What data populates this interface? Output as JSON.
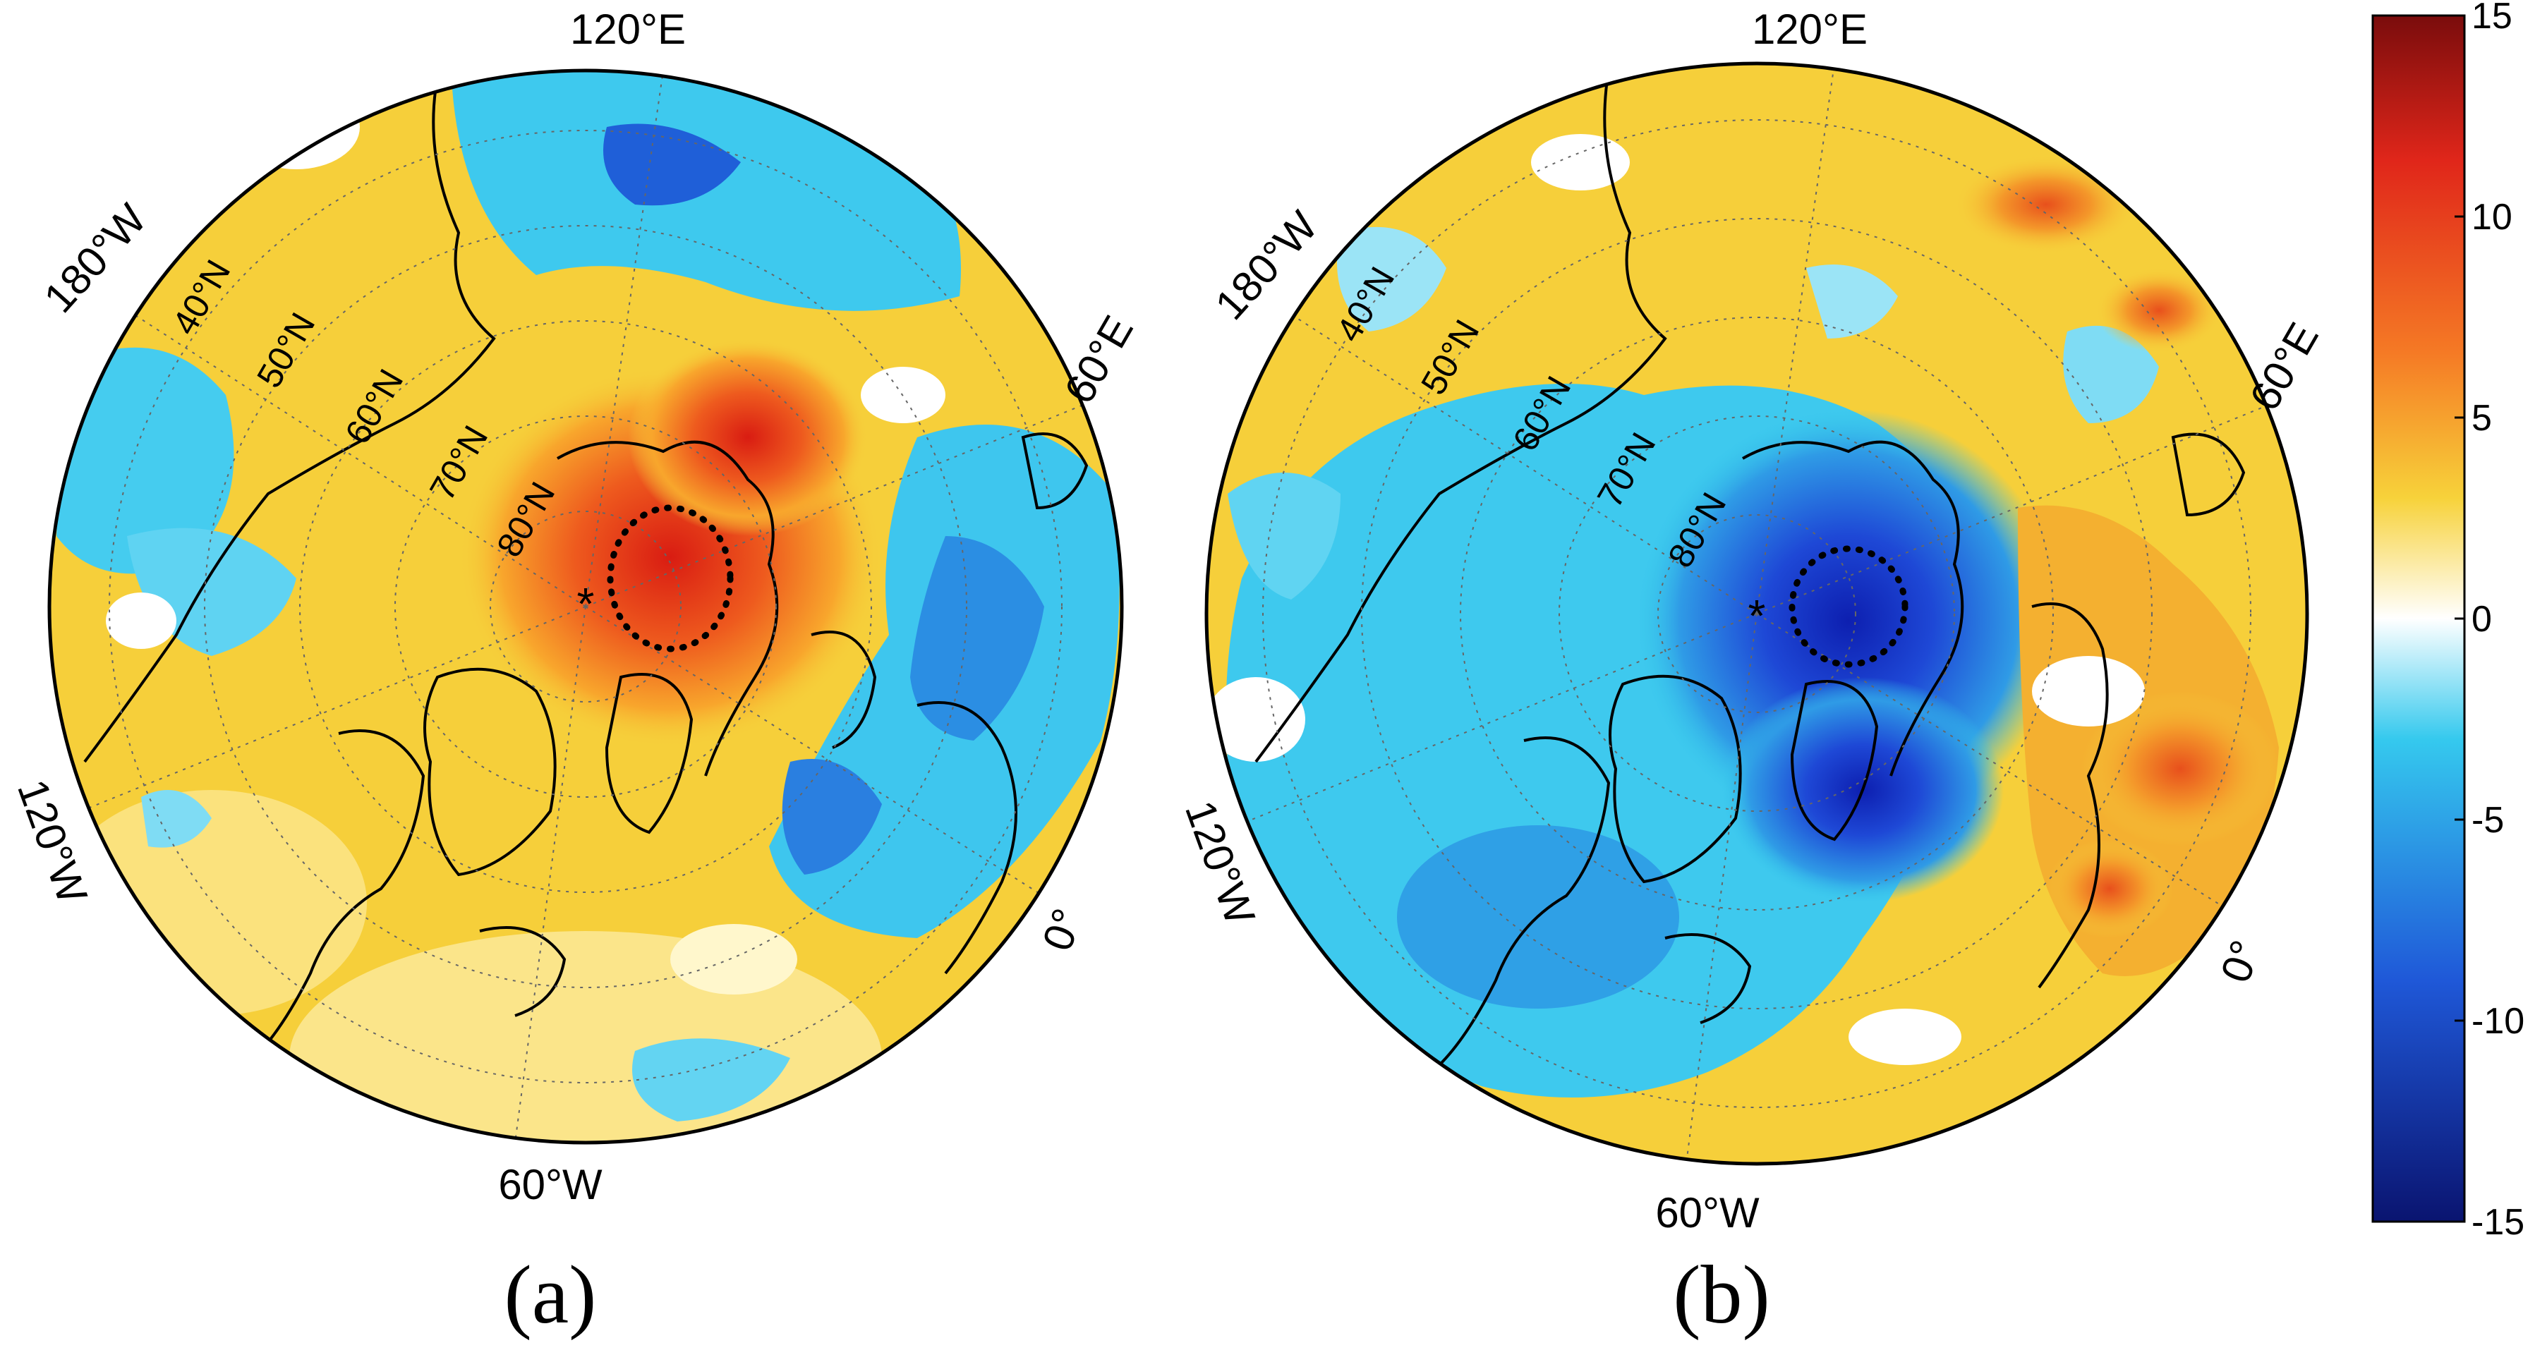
{
  "panels": [
    {
      "id": "a",
      "label": "(a)",
      "longitude_labels": {
        "top": "120°E",
        "upper_left": "180°W",
        "upper_right": "60°E",
        "left": "120°W",
        "bottom": "60°W",
        "right": "0°"
      },
      "latitude_labels": [
        "40°N",
        "50°N",
        "60°N",
        "70°N",
        "80°N"
      ],
      "pole_marker": "*",
      "anomaly_sign": "positive",
      "colors": {
        "background": "#fff3a8",
        "main": "#f6cf3a",
        "hot": "#e0311a",
        "cool": "#34c6ea",
        "deep": "#1b4fd0"
      }
    },
    {
      "id": "b",
      "label": "(b)",
      "longitude_labels": {
        "top": "120°E",
        "upper_left": "180°W",
        "upper_right": "60°E",
        "left": "120°W",
        "bottom": "60°W",
        "right": "0°"
      },
      "latitude_labels": [
        "40°N",
        "50°N",
        "60°N",
        "70°N",
        "80°N"
      ],
      "pole_marker": "*",
      "anomaly_sign": "negative",
      "colors": {
        "background": "#bff1ff",
        "main": "#34c6ea",
        "hot": "#ef7a22",
        "warm": "#f6cf3a",
        "deep": "#1436c8"
      }
    }
  ],
  "colorbar": {
    "ticks": [
      "15",
      "10",
      "5",
      "0",
      "-5",
      "-10",
      "-15"
    ],
    "min": -15,
    "max": 15,
    "stops": [
      "#7a0c0c",
      "#e0261a",
      "#f57a25",
      "#f7d23a",
      "#ffffff",
      "#35c9ee",
      "#1f58d8",
      "#0a1470"
    ]
  }
}
